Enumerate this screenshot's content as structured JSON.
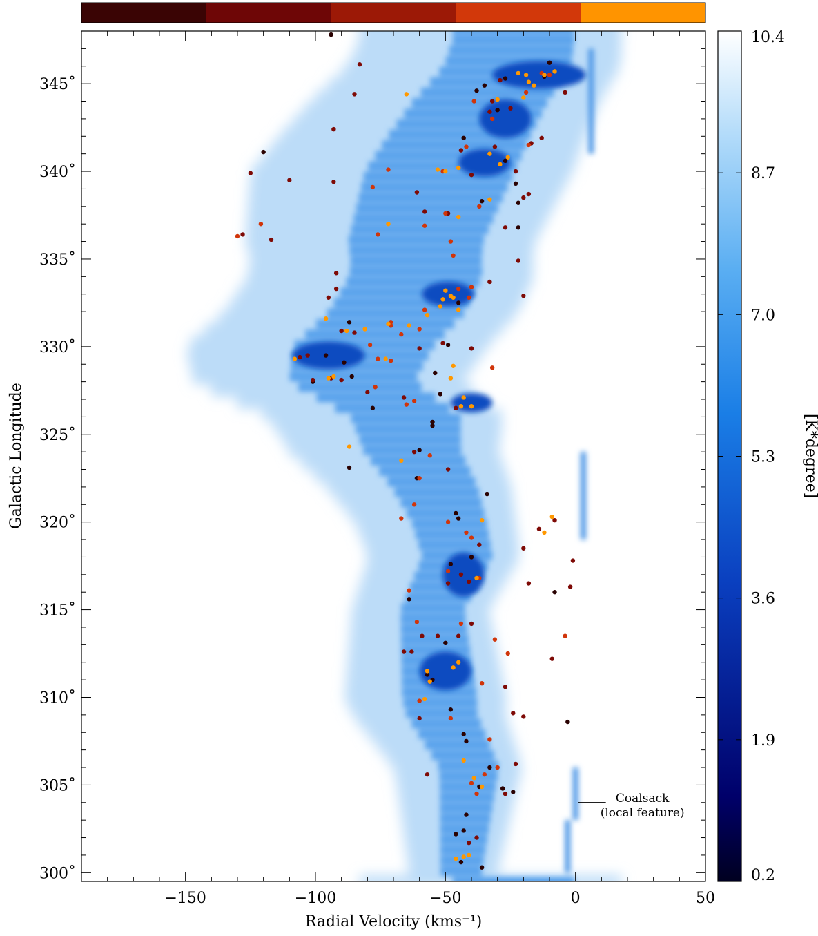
{
  "chart_data": {
    "type": "scatter",
    "title": "",
    "xlabel": "Radial Velocity (kms⁻¹)",
    "ylabel": "Galactic Longitude",
    "xlim": [
      -190,
      50
    ],
    "ylim": [
      299.5,
      348
    ],
    "x_ticks": [
      -150,
      -100,
      -50,
      0,
      50
    ],
    "x_tick_labels": [
      "−150",
      "−100",
      "−50",
      "0",
      "50"
    ],
    "y_ticks": [
      300,
      305,
      310,
      315,
      320,
      325,
      330,
      335,
      340,
      345
    ],
    "y_tick_labels": [
      "300˚",
      "305˚",
      "310˚",
      "315˚",
      "320˚",
      "325˚",
      "330˚",
      "335˚",
      "340˚",
      "345˚"
    ],
    "background": "CO longitude-velocity map (integrated intensity, blue colour scale)",
    "colorbar": {
      "label": "[K*degree]",
      "ticks": [
        "10.4",
        "8.7",
        "7.0",
        "5.3",
        "3.6",
        "1.9",
        "0.2"
      ],
      "range": [
        0.2,
        10.4
      ],
      "colors": [
        "#000020",
        "#00006a",
        "#0a3fbf",
        "#1a7ee6",
        "#5aaef2",
        "#b4dcfa",
        "#ffffff"
      ]
    },
    "category_bar": {
      "colors": [
        "#3a0404",
        "#6e0606",
        "#9c1906",
        "#d2380a",
        "#ff9400"
      ]
    },
    "annotation": {
      "line1": "Coalsack",
      "line2": "(local feature)",
      "x": 0,
      "y": 304
    },
    "series": [
      {
        "group": 0,
        "color": "#2a0202",
        "points": [
          [
            -10,
            346.2
          ],
          [
            -27,
            345.3
          ],
          [
            -35,
            344.9
          ],
          [
            -38,
            344.6
          ],
          [
            -30,
            343.5
          ],
          [
            -43,
            341.9
          ],
          [
            -27,
            340.6
          ],
          [
            -23,
            339.3
          ],
          [
            -36,
            338.3
          ],
          [
            -22,
            336.8
          ],
          [
            -45,
            332.5
          ],
          [
            -54,
            328.5
          ],
          [
            -49,
            330.1
          ],
          [
            -87,
            331.4
          ],
          [
            -89,
            329.1
          ],
          [
            -96,
            329.5
          ],
          [
            -101,
            328.0
          ],
          [
            -86,
            328.3
          ],
          [
            -78,
            326.5
          ],
          [
            -52,
            327.3
          ],
          [
            -55,
            325.7
          ],
          [
            -55,
            325.5
          ],
          [
            -46,
            320.5
          ],
          [
            -45,
            320.2
          ],
          [
            -34,
            321.6
          ],
          [
            -61,
            322.5
          ],
          [
            -60,
            324.1
          ],
          [
            -87,
            323.1
          ],
          [
            -40,
            318.0
          ],
          [
            -48,
            317.6
          ],
          [
            -8,
            316.0
          ],
          [
            -64,
            315.6
          ],
          [
            -50,
            313.1
          ],
          [
            -57,
            311.3
          ],
          [
            -55,
            311.0
          ],
          [
            -48,
            309.3
          ],
          [
            -3,
            308.6
          ],
          [
            -43,
            307.9
          ],
          [
            -42,
            307.5
          ],
          [
            -33,
            306.0
          ],
          [
            -28,
            304.8
          ],
          [
            -24,
            304.6
          ],
          [
            -37,
            304.9
          ],
          [
            -42,
            303.3
          ],
          [
            -43,
            302.4
          ],
          [
            -46,
            302.2
          ],
          [
            -44,
            300.6
          ],
          [
            -36,
            300.3
          ],
          [
            -94,
            347.8
          ],
          [
            -120,
            341.1
          ],
          [
            -22,
            338.2
          ],
          [
            -12,
            345.4
          ]
        ]
      },
      {
        "group": 1,
        "color": "#7e0a06",
        "points": [
          [
            -83,
            346.1
          ],
          [
            -85,
            344.4
          ],
          [
            -93,
            342.4
          ],
          [
            -93,
            339.4
          ],
          [
            -125,
            339.9
          ],
          [
            -110,
            339.5
          ],
          [
            -20,
            338.5
          ],
          [
            -27,
            336.8
          ],
          [
            -128,
            336.4
          ],
          [
            -117,
            336.1
          ],
          [
            -103,
            329.5
          ],
          [
            -106,
            329.4
          ],
          [
            -101,
            328.1
          ],
          [
            -94,
            328.2
          ],
          [
            -90,
            328.1
          ],
          [
            -92,
            334.2
          ],
          [
            -92,
            333.3
          ],
          [
            -95,
            332.8
          ],
          [
            -90,
            330.9
          ],
          [
            -85,
            330.8
          ],
          [
            -80,
            327.4
          ],
          [
            -66,
            327.1
          ],
          [
            -60,
            329.9
          ],
          [
            -51,
            330.2
          ],
          [
            -46,
            326.5
          ],
          [
            -22,
            334.9
          ],
          [
            -40,
            329.9
          ],
          [
            -20,
            332.9
          ],
          [
            -18,
            338.7
          ],
          [
            -13,
            341.9
          ],
          [
            -17,
            341.6
          ],
          [
            -4,
            344.5
          ],
          [
            -25,
            343.6
          ],
          [
            -32,
            344.0
          ],
          [
            -33,
            343.4
          ],
          [
            -31,
            341.4
          ],
          [
            -44,
            341.2
          ],
          [
            -40,
            339.8
          ],
          [
            -58,
            337.7
          ],
          [
            -33,
            333.7
          ],
          [
            -49,
            323.0
          ],
          [
            -62,
            324.0
          ],
          [
            -44,
            317.0
          ],
          [
            -41,
            316.6
          ],
          [
            -37,
            318.7
          ],
          [
            -20,
            318.5
          ],
          [
            -18,
            316.5
          ],
          [
            -14,
            319.6
          ],
          [
            -8,
            320.1
          ],
          [
            -2,
            316.3
          ],
          [
            -1,
            317.8
          ],
          [
            -49,
            316.5
          ],
          [
            -66,
            312.6
          ],
          [
            -63,
            312.6
          ],
          [
            -59,
            313.5
          ],
          [
            -53,
            313.5
          ],
          [
            -45,
            313.5
          ],
          [
            -40,
            314.2
          ],
          [
            -60,
            308.8
          ],
          [
            -27,
            310.6
          ],
          [
            -24,
            309.1
          ],
          [
            -20,
            308.9
          ],
          [
            -9,
            312.2
          ],
          [
            -23,
            306.2
          ],
          [
            -27,
            304.5
          ],
          [
            -38,
            302.0
          ],
          [
            -41,
            301.7
          ],
          [
            -57,
            305.6
          ],
          [
            -29,
            345.2
          ],
          [
            -23,
            340.0
          ],
          [
            -61,
            338.8
          ],
          [
            -49,
            337.6
          ]
        ]
      },
      {
        "group": 2,
        "color": "#d0350a",
        "points": [
          [
            -78,
            339.1
          ],
          [
            -72,
            340.1
          ],
          [
            -121,
            337.0
          ],
          [
            -130,
            336.3
          ],
          [
            -58,
            336.9
          ],
          [
            -76,
            336.4
          ],
          [
            -48,
            336.0
          ],
          [
            -47,
            335.2
          ],
          [
            -40,
            333.4
          ],
          [
            -58,
            332.1
          ],
          [
            -71,
            331.2
          ],
          [
            -79,
            330.1
          ],
          [
            -67,
            330.7
          ],
          [
            -60,
            331.0
          ],
          [
            -76,
            329.3
          ],
          [
            -71,
            329.2
          ],
          [
            -62,
            326.9
          ],
          [
            -77,
            327.7
          ],
          [
            -65,
            326.7
          ],
          [
            -60,
            322.5
          ],
          [
            -56,
            323.8
          ],
          [
            -49,
            320.0
          ],
          [
            -42,
            319.4
          ],
          [
            -40,
            319.1
          ],
          [
            -32,
            328.8
          ],
          [
            -41,
            332.8
          ],
          [
            -45,
            333.3
          ],
          [
            -32,
            343.0
          ],
          [
            -19,
            344.5
          ],
          [
            -13,
            345.6
          ],
          [
            -10,
            345.5
          ],
          [
            -18,
            341.5
          ],
          [
            -37,
            338.0
          ],
          [
            -50,
            337.6
          ],
          [
            -42,
            341.4
          ],
          [
            -39,
            344.0
          ],
          [
            -51,
            340.0
          ],
          [
            -49,
            317.2
          ],
          [
            -37,
            316.8
          ],
          [
            -31,
            313.3
          ],
          [
            -44,
            314.2
          ],
          [
            -64,
            316.1
          ],
          [
            -61,
            314.3
          ],
          [
            -36,
            310.8
          ],
          [
            -60,
            309.8
          ],
          [
            -40,
            305.1
          ],
          [
            -35,
            305.6
          ],
          [
            -30,
            306.0
          ],
          [
            -38,
            304.5
          ],
          [
            -33,
            307.6
          ],
          [
            -48,
            308.8
          ],
          [
            -4,
            313.5
          ],
          [
            -67,
            320.2
          ],
          [
            -62,
            321.0
          ],
          [
            -71,
            331.4
          ],
          [
            -26,
            312.5
          ]
        ]
      },
      {
        "group": 3,
        "color": "#ff9800",
        "points": [
          [
            -65,
            344.4
          ],
          [
            -30,
            344.1
          ],
          [
            -20,
            344.2
          ],
          [
            -12,
            345.5
          ],
          [
            -8,
            345.7
          ],
          [
            -18,
            345.1
          ],
          [
            -16,
            344.9
          ],
          [
            -22,
            345.6
          ],
          [
            -19,
            345.5
          ],
          [
            -33,
            341.0
          ],
          [
            -29,
            340.4
          ],
          [
            -26,
            340.8
          ],
          [
            -45,
            340.2
          ],
          [
            -50,
            340.0
          ],
          [
            -53,
            340.1
          ],
          [
            -33,
            338.4
          ],
          [
            -45,
            337.4
          ],
          [
            -72,
            337.0
          ],
          [
            -50,
            333.2
          ],
          [
            -48,
            332.9
          ],
          [
            -51,
            332.7
          ],
          [
            -45,
            332.1
          ],
          [
            -47,
            332.8
          ],
          [
            -52,
            332.3
          ],
          [
            -57,
            331.8
          ],
          [
            -64,
            331.2
          ],
          [
            -72,
            331.3
          ],
          [
            -81,
            331.0
          ],
          [
            -88,
            330.9
          ],
          [
            -108,
            329.3
          ],
          [
            -93,
            328.3
          ],
          [
            -95,
            328.2
          ],
          [
            -73,
            329.3
          ],
          [
            -48,
            328.2
          ],
          [
            -43,
            327.1
          ],
          [
            -44,
            326.6
          ],
          [
            -40,
            326.6
          ],
          [
            -47,
            328.9
          ],
          [
            -36,
            320.1
          ],
          [
            -12,
            319.4
          ],
          [
            -9,
            320.3
          ],
          [
            -38,
            316.8
          ],
          [
            -45,
            312.0
          ],
          [
            -47,
            311.7
          ],
          [
            -56,
            310.9
          ],
          [
            -57,
            311.5
          ],
          [
            -58,
            309.9
          ],
          [
            -43,
            306.4
          ],
          [
            -39,
            305.4
          ],
          [
            -36,
            304.9
          ],
          [
            -43,
            300.9
          ],
          [
            -41,
            301.0
          ],
          [
            -46,
            300.8
          ],
          [
            -87,
            324.3
          ],
          [
            -67,
            323.5
          ],
          [
            -96,
            331.6
          ]
        ]
      }
    ]
  }
}
